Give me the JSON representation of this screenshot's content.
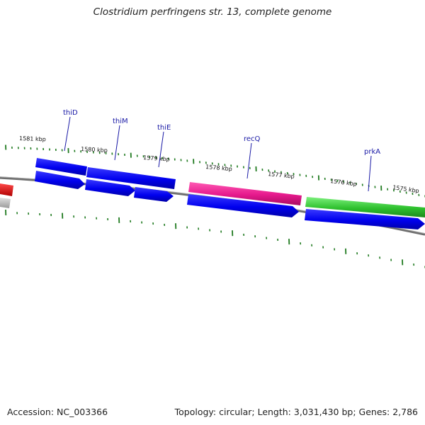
{
  "title": "Clostridium perfringens str. 13, complete genome",
  "footer": {
    "accession": "Accession: NC_003366",
    "summary": "Topology: circular; Length: 3,031,430 bp; Genes: 2,786"
  },
  "scale_labels": [
    "1581 kbp",
    "1580 kbp",
    "1579 kbp",
    "1578 kbp",
    "1577 kbp",
    "1576 kbp",
    "1575 kbp"
  ],
  "gene_labels": [
    "thiD",
    "thiM",
    "thiE",
    "recQ",
    "prkA"
  ],
  "colors": {
    "backbone": "#7a7a7a",
    "tick": "#1f7a1f",
    "cds": "#0000ee",
    "gene_blue": "#0000ee",
    "gene_magenta": "#e6198c",
    "gene_green": "#2ec02e",
    "gene_red": "#ee0000",
    "gene_grey": "#b0b0b0",
    "label": "#1a1aa6"
  }
}
